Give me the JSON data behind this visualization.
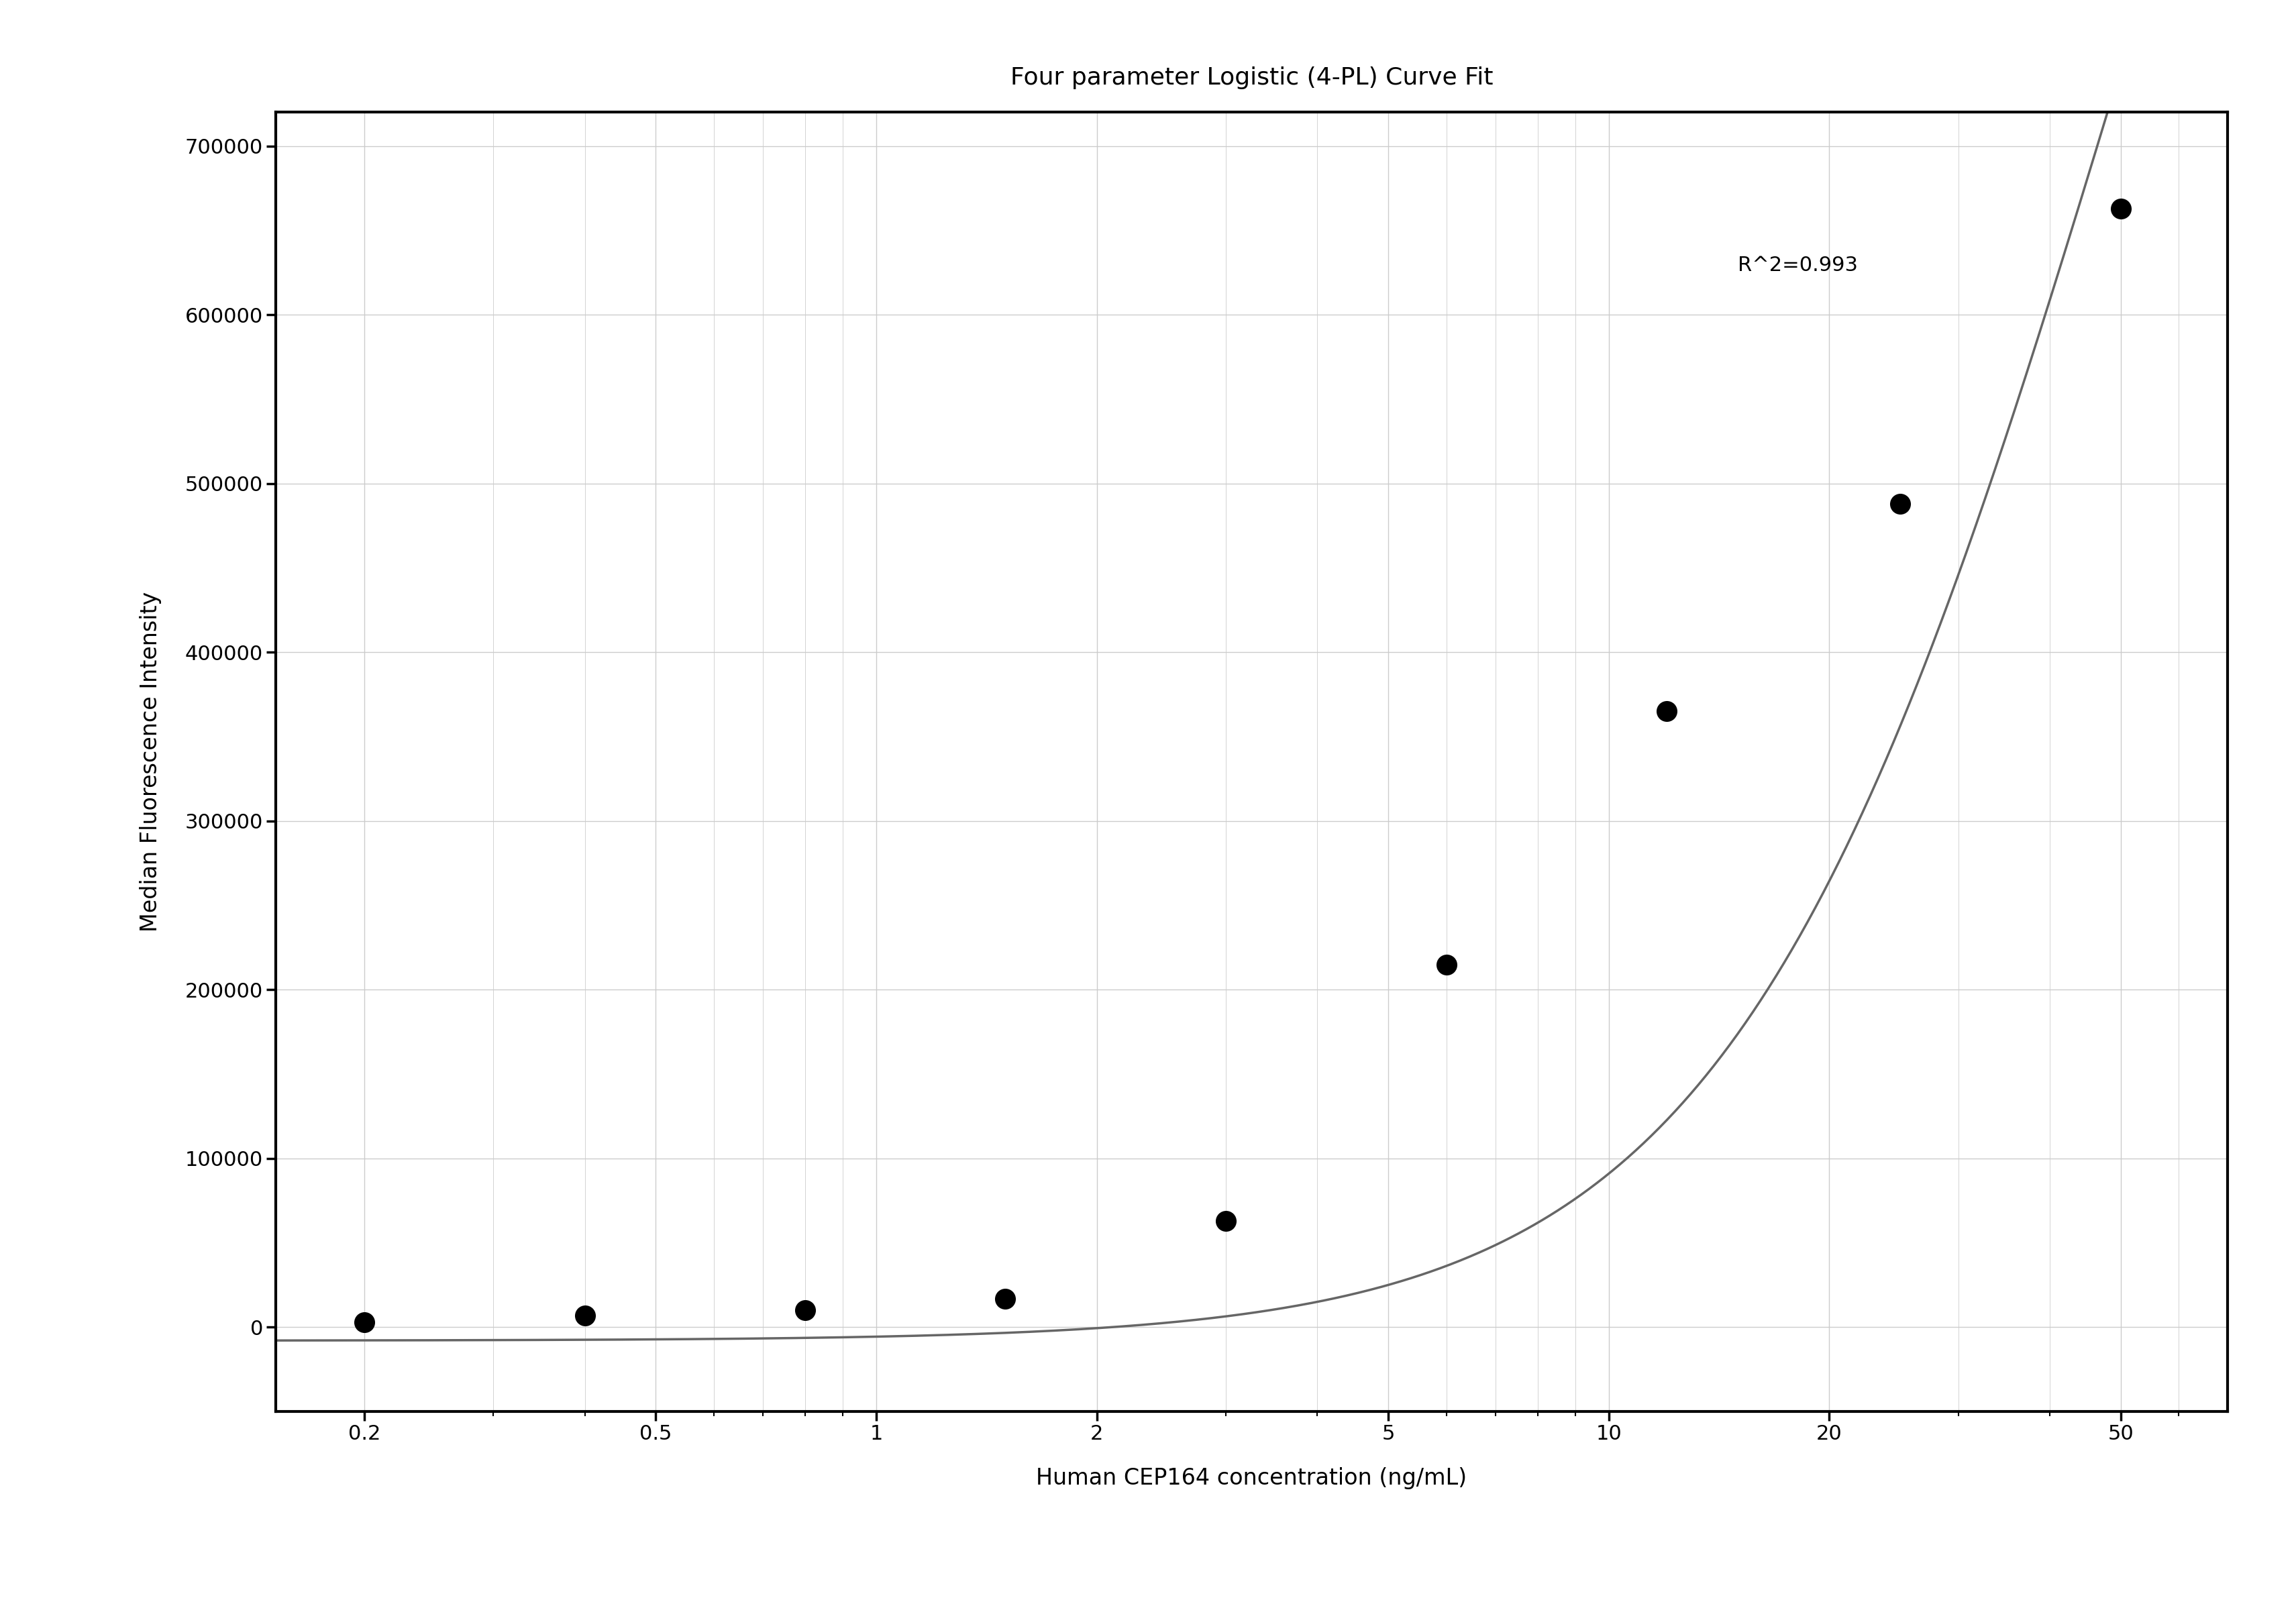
{
  "title": "Four parameter Logistic (4-PL) Curve Fit",
  "xlabel": "Human CEP164 concentration (ng/mL)",
  "ylabel": "Median Fluorescence Intensity",
  "r_squared_text": "R^2=0.993",
  "data_x": [
    0.2,
    0.4,
    0.8,
    1.5,
    3.0,
    6.0,
    12.0,
    25.0,
    50.0
  ],
  "data_y": [
    3000,
    7000,
    10000,
    17000,
    63000,
    215000,
    365000,
    488000,
    663000
  ],
  "x_ticks": [
    0.2,
    0.5,
    1,
    2,
    5,
    10,
    20,
    50
  ],
  "x_tick_labels": [
    "0.2",
    "0.5",
    "1",
    "2",
    "5",
    "10",
    "20",
    "50"
  ],
  "xlim_log": [
    -0.82,
    1.845
  ],
  "ylim": [
    -50000,
    720000
  ],
  "y_ticks": [
    0,
    100000,
    200000,
    300000,
    400000,
    500000,
    600000,
    700000
  ],
  "y_tick_labels": [
    "0",
    "100000",
    "200000",
    "300000",
    "400000",
    "500000",
    "600000",
    "700000"
  ],
  "curve_color": "#666666",
  "dot_color": "#000000",
  "dot_size": 100,
  "grid_color": "#cccccc",
  "background_color": "#ffffff",
  "title_fontsize": 26,
  "label_fontsize": 24,
  "tick_fontsize": 22,
  "annotation_fontsize": 22,
  "r2_x_data": 15,
  "r2_y_data": 635000,
  "pl4_A": -8000,
  "pl4_D": 1500000,
  "pl4_C": 50,
  "pl4_B": 1.65
}
